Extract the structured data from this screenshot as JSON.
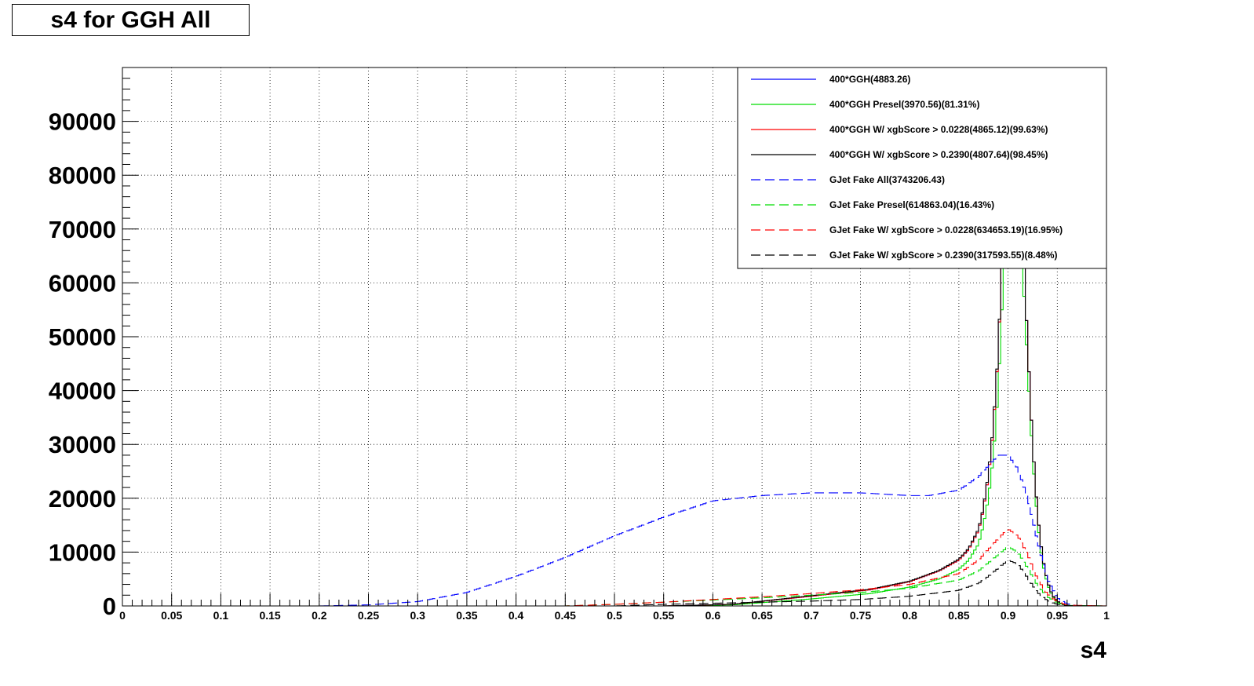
{
  "chart_data": {
    "type": "line",
    "title": "s4 for GGH All",
    "xlabel": "s4",
    "ylabel": "",
    "xlim": [
      0,
      1
    ],
    "ylim": [
      0,
      100000
    ],
    "grid": true,
    "legend_position": "top-right",
    "x_ticks": [
      "0",
      "0.05",
      "0.1",
      "0.15",
      "0.2",
      "0.25",
      "0.3",
      "0.35",
      "0.4",
      "0.45",
      "0.5",
      "0.55",
      "0.6",
      "0.65",
      "0.7",
      "0.75",
      "0.8",
      "0.85",
      "0.9",
      "0.95",
      "1"
    ],
    "y_ticks": [
      "0",
      "10000",
      "20000",
      "30000",
      "40000",
      "50000",
      "60000",
      "70000",
      "80000",
      "90000"
    ],
    "series": [
      {
        "name": "400*GGH(4883.26)",
        "color": "#0000ff",
        "dash": "solid",
        "x": [
          0.0,
          0.55,
          0.62,
          0.7,
          0.76,
          0.8,
          0.83,
          0.85,
          0.86,
          0.87,
          0.875,
          0.88,
          0.885,
          0.89,
          0.895,
          0.9,
          0.905,
          0.91,
          0.915,
          0.92,
          0.925,
          0.93,
          0.935,
          0.94,
          0.945,
          0.95,
          0.955,
          0.96,
          0.97,
          1.0
        ],
        "y": [
          0,
          0,
          300,
          1800,
          3000,
          4500,
          6500,
          8500,
          10500,
          14000,
          18000,
          24000,
          33000,
          47000,
          70000,
          95000,
          96000,
          85000,
          68000,
          48000,
          30000,
          17000,
          9000,
          4500,
          2000,
          900,
          350,
          120,
          0,
          0
        ]
      },
      {
        "name": "400*GGH Presel(3970.56)(81.31%)",
        "color": "#00dd00",
        "dash": "solid",
        "x": [
          0.0,
          0.55,
          0.62,
          0.7,
          0.76,
          0.8,
          0.83,
          0.85,
          0.86,
          0.87,
          0.875,
          0.88,
          0.885,
          0.89,
          0.895,
          0.9,
          0.905,
          0.91,
          0.915,
          0.92,
          0.925,
          0.93,
          0.935,
          0.94,
          0.945,
          0.95,
          0.955,
          0.96,
          0.97,
          1.0
        ],
        "y": [
          0,
          0,
          200,
          1300,
          2300,
          3500,
          5000,
          6800,
          8500,
          11500,
          15000,
          20000,
          27500,
          40000,
          60000,
          82000,
          84000,
          76000,
          62000,
          44000,
          27500,
          15500,
          8000,
          4000,
          1800,
          800,
          300,
          100,
          0,
          0
        ]
      },
      {
        "name": "400*GGH W/ xgbScore > 0.0228(4865.12)(99.63%)",
        "color": "#ff0000",
        "dash": "solid",
        "x": [
          0.0,
          0.55,
          0.62,
          0.7,
          0.76,
          0.8,
          0.83,
          0.85,
          0.86,
          0.87,
          0.875,
          0.88,
          0.885,
          0.89,
          0.895,
          0.9,
          0.905,
          0.91,
          0.915,
          0.92,
          0.925,
          0.93,
          0.935,
          0.94,
          0.945,
          0.95,
          0.955,
          0.96,
          0.97,
          1.0
        ],
        "y": [
          0,
          0,
          300,
          1800,
          3000,
          4500,
          6500,
          8500,
          10500,
          14000,
          18000,
          24000,
          33000,
          47000,
          70000,
          95000,
          96000,
          85000,
          68000,
          48000,
          30000,
          17000,
          9000,
          4500,
          2000,
          900,
          350,
          120,
          0,
          0
        ]
      },
      {
        "name": "400*GGH W/ xgbScore > 0.2390(4807.64)(98.45%)",
        "color": "#000000",
        "dash": "solid",
        "x": [
          0.0,
          0.55,
          0.62,
          0.7,
          0.76,
          0.8,
          0.83,
          0.85,
          0.86,
          0.87,
          0.875,
          0.88,
          0.885,
          0.89,
          0.895,
          0.9,
          0.905,
          0.91,
          0.915,
          0.92,
          0.925,
          0.93,
          0.935,
          0.94,
          0.945,
          0.95,
          0.955,
          0.96,
          0.97,
          1.0
        ],
        "y": [
          0,
          0,
          300,
          1900,
          3100,
          4600,
          6600,
          8700,
          10700,
          14300,
          18300,
          24500,
          33500,
          47500,
          70500,
          95000,
          96000,
          85000,
          68000,
          48000,
          30000,
          17000,
          9000,
          4500,
          2000,
          900,
          350,
          120,
          0,
          0
        ]
      },
      {
        "name": "GJet Fake All(3743206.43)",
        "color": "#0000ff",
        "dash": "dashed",
        "x": [
          0.0,
          0.2,
          0.25,
          0.3,
          0.35,
          0.4,
          0.45,
          0.5,
          0.55,
          0.6,
          0.65,
          0.7,
          0.75,
          0.8,
          0.82,
          0.85,
          0.87,
          0.88,
          0.89,
          0.9,
          0.91,
          0.92,
          0.93,
          0.94,
          0.95,
          0.96,
          0.97,
          1.0
        ],
        "y": [
          0,
          0,
          200,
          800,
          2500,
          5500,
          9000,
          13000,
          16500,
          19500,
          20500,
          21000,
          21000,
          20500,
          20500,
          21500,
          24000,
          26000,
          28000,
          28000,
          25500,
          20000,
          12000,
          5000,
          1500,
          400,
          0,
          0
        ]
      },
      {
        "name": "GJet Fake Presel(614863.04)(16.43%)",
        "color": "#00dd00",
        "dash": "dashed",
        "x": [
          0.0,
          0.45,
          0.5,
          0.55,
          0.6,
          0.65,
          0.7,
          0.75,
          0.8,
          0.85,
          0.87,
          0.88,
          0.89,
          0.9,
          0.91,
          0.92,
          0.93,
          0.94,
          0.95,
          0.96,
          1.0
        ],
        "y": [
          0,
          0,
          300,
          700,
          1100,
          1500,
          2000,
          2500,
          3300,
          4800,
          6500,
          8000,
          9500,
          11000,
          10000,
          7000,
          3800,
          1700,
          600,
          100,
          0
        ]
      },
      {
        "name": "GJet Fake W/ xgbScore > 0.0228(634653.19)(16.95%)",
        "color": "#ff0000",
        "dash": "dashed",
        "x": [
          0.0,
          0.45,
          0.5,
          0.55,
          0.6,
          0.65,
          0.7,
          0.75,
          0.8,
          0.85,
          0.87,
          0.88,
          0.89,
          0.9,
          0.91,
          0.92,
          0.93,
          0.94,
          0.95,
          0.96,
          1.0
        ],
        "y": [
          0,
          0,
          300,
          700,
          1200,
          1700,
          2300,
          3000,
          4000,
          6000,
          8500,
          10500,
          12500,
          14300,
          13000,
          9500,
          5000,
          2200,
          800,
          150,
          0
        ]
      },
      {
        "name": "GJet Fake W/ xgbScore > 0.2390(317593.55)(8.48%)",
        "color": "#000000",
        "dash": "dashed",
        "x": [
          0.0,
          0.5,
          0.55,
          0.6,
          0.65,
          0.7,
          0.75,
          0.8,
          0.85,
          0.87,
          0.88,
          0.89,
          0.9,
          0.91,
          0.92,
          0.93,
          0.94,
          0.95,
          0.96,
          1.0
        ],
        "y": [
          0,
          0,
          300,
          500,
          700,
          900,
          1200,
          1800,
          2900,
          4200,
          5500,
          7000,
          8500,
          7800,
          5200,
          2500,
          1000,
          300,
          50,
          0
        ]
      }
    ]
  }
}
